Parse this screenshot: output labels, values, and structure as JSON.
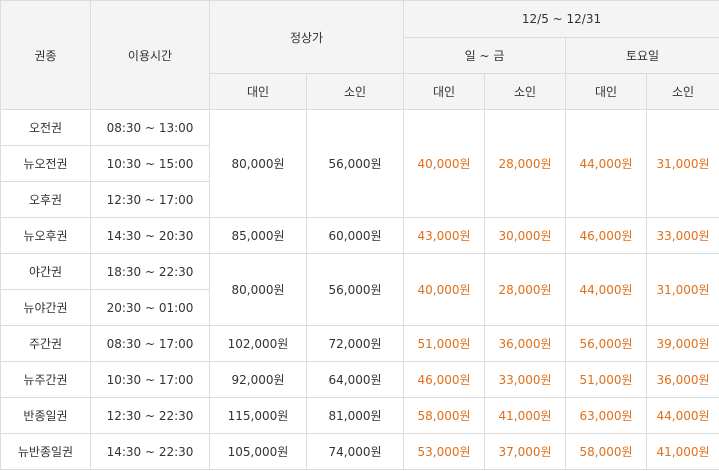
{
  "header": {
    "type": "권종",
    "time": "이용시간",
    "regular": "정상가",
    "period": "12/5 ~ 12/31",
    "weekday": "일 ~ 금",
    "saturday": "토요일",
    "adult": "대인",
    "child": "소인"
  },
  "rows": [
    {
      "name": "오전권",
      "time": "08:30 ~ 13:00"
    },
    {
      "name": "뉴오전권",
      "time": "10:30 ~ 15:00"
    },
    {
      "name": "오후권",
      "time": "12:30 ~ 17:00"
    },
    {
      "name": "뉴오후권",
      "time": "14:30 ~ 20:30"
    },
    {
      "name": "야간권",
      "time": "18:30 ~ 22:30"
    },
    {
      "name": "뉴야간권",
      "time": "20:30 ~ 01:00"
    },
    {
      "name": "주간권",
      "time": "08:30 ~ 17:00"
    },
    {
      "name": "뉴주간권",
      "time": "10:30 ~ 17:00"
    },
    {
      "name": "반종일권",
      "time": "12:30 ~ 22:30"
    },
    {
      "name": "뉴반종일권",
      "time": "14:30 ~ 22:30"
    }
  ],
  "prices": [
    {
      "regular_adult": "80,000원",
      "regular_child": "56,000원",
      "weekday_adult": "40,000원",
      "weekday_child": "28,000원",
      "sat_adult": "44,000원",
      "sat_child": "31,000원"
    },
    {
      "regular_adult": "85,000원",
      "regular_child": "60,000원",
      "weekday_adult": "43,000원",
      "weekday_child": "30,000원",
      "sat_adult": "46,000원",
      "sat_child": "33,000원"
    },
    {
      "regular_adult": "80,000원",
      "regular_child": "56,000원",
      "weekday_adult": "40,000원",
      "weekday_child": "28,000원",
      "sat_adult": "44,000원",
      "sat_child": "31,000원"
    },
    {
      "regular_adult": "102,000원",
      "regular_child": "72,000원",
      "weekday_adult": "51,000원",
      "weekday_child": "36,000원",
      "sat_adult": "56,000원",
      "sat_child": "39,000원"
    },
    {
      "regular_adult": "92,000원",
      "regular_child": "64,000원",
      "weekday_adult": "46,000원",
      "weekday_child": "33,000원",
      "sat_adult": "51,000원",
      "sat_child": "36,000원"
    },
    {
      "regular_adult": "115,000원",
      "regular_child": "81,000원",
      "weekday_adult": "58,000원",
      "weekday_child": "41,000원",
      "sat_adult": "63,000원",
      "sat_child": "44,000원"
    },
    {
      "regular_adult": "105,000원",
      "regular_child": "74,000원",
      "weekday_adult": "53,000원",
      "weekday_child": "37,000원",
      "sat_adult": "58,000원",
      "sat_child": "41,000원"
    }
  ],
  "colors": {
    "sale_price": "#e06f1a",
    "header_bg": "#f4f4f4",
    "border": "#dcdcdc"
  }
}
